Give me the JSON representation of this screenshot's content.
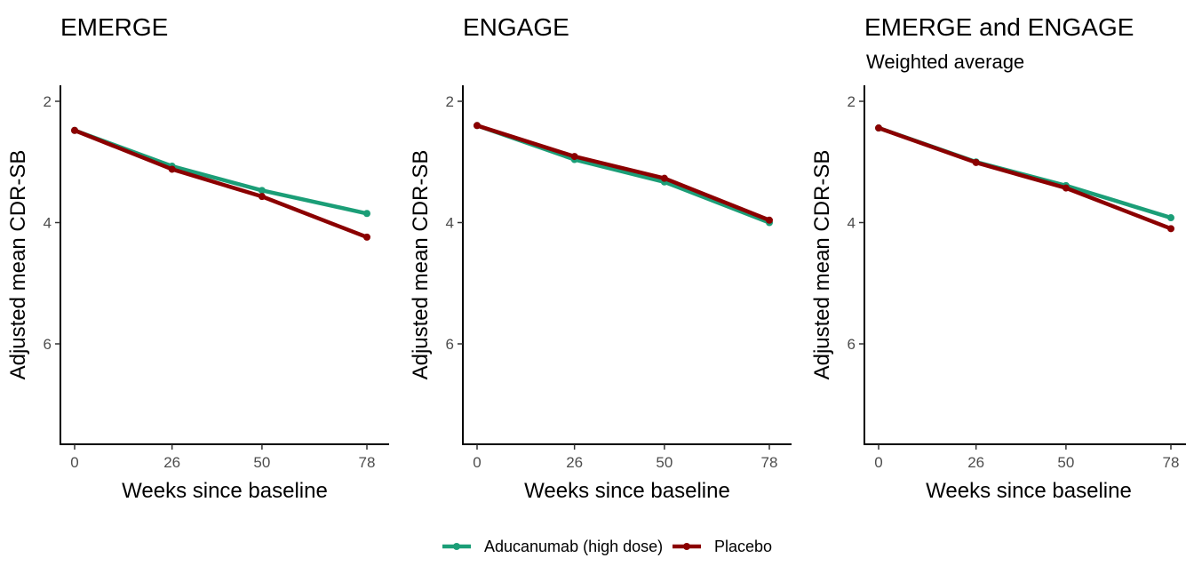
{
  "chart_data": [
    {
      "type": "line",
      "title": "EMERGE",
      "subtitle": "",
      "xlabel": "Weeks since baseline",
      "ylabel": "Adjusted mean CDR-SB",
      "x": [
        0,
        26,
        50,
        78
      ],
      "xticks": [
        0,
        26,
        50,
        78
      ],
      "yticks": [
        2,
        4,
        6
      ],
      "xlim": [
        -3,
        81
      ],
      "ylim": [
        1.8,
        7.7
      ],
      "y_reversed": true,
      "grid": false,
      "series": [
        {
          "name": "Aducanumab (high dose)",
          "color": "#1b9e77",
          "values": [
            2.48,
            3.07,
            3.47,
            3.85
          ]
        },
        {
          "name": "Placebo",
          "color": "#8b0000",
          "values": [
            2.48,
            3.12,
            3.57,
            4.24
          ]
        }
      ]
    },
    {
      "type": "line",
      "title": "ENGAGE",
      "subtitle": "",
      "xlabel": "Weeks since baseline",
      "ylabel": "Adjusted mean CDR-SB",
      "x": [
        0,
        26,
        50,
        78
      ],
      "xticks": [
        0,
        26,
        50,
        78
      ],
      "yticks": [
        2,
        4,
        6
      ],
      "xlim": [
        -3,
        81
      ],
      "ylim": [
        1.8,
        7.7
      ],
      "y_reversed": true,
      "grid": false,
      "series": [
        {
          "name": "Aducanumab (high dose)",
          "color": "#1b9e77",
          "values": [
            2.4,
            2.96,
            3.33,
            4.0
          ]
        },
        {
          "name": "Placebo",
          "color": "#8b0000",
          "values": [
            2.4,
            2.91,
            3.27,
            3.96
          ]
        }
      ]
    },
    {
      "type": "line",
      "title": "EMERGE and ENGAGE",
      "subtitle": "Weighted average",
      "xlabel": "Weeks since baseline",
      "ylabel": "Adjusted mean CDR-SB",
      "x": [
        0,
        26,
        50,
        78
      ],
      "xticks": [
        0,
        26,
        50,
        78
      ],
      "yticks": [
        2,
        4,
        6
      ],
      "xlim": [
        -3,
        81
      ],
      "ylim": [
        1.8,
        7.7
      ],
      "y_reversed": true,
      "grid": false,
      "series": [
        {
          "name": "Aducanumab (high dose)",
          "color": "#1b9e77",
          "values": [
            2.44,
            3.0,
            3.39,
            3.92
          ]
        },
        {
          "name": "Placebo",
          "color": "#8b0000",
          "values": [
            2.44,
            3.01,
            3.43,
            4.1
          ]
        }
      ]
    }
  ],
  "legend": {
    "position": "bottom",
    "items": [
      {
        "label": "Aducanumab (high dose)",
        "color": "#1b9e77"
      },
      {
        "label": "Placebo",
        "color": "#8b0000"
      }
    ]
  }
}
